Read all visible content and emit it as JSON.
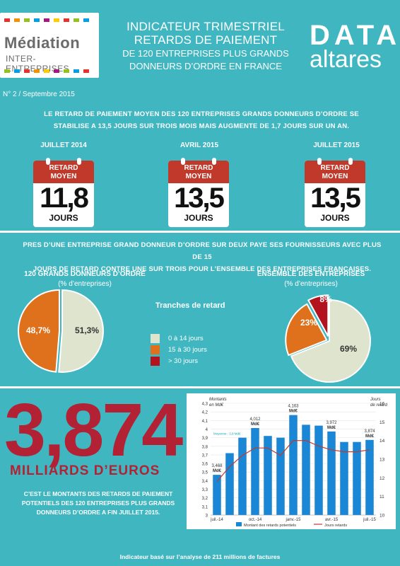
{
  "header": {
    "logo_mediation": {
      "title": "Médiation",
      "subtitle": "INTER-ENTREPRISES"
    },
    "title_line1": "INDICATEUR TRIMESTRIEL",
    "title_line2": "RETARDS DE PAIEMENT",
    "title_line3": "DE 120 ENTREPRISES PLUS GRANDS",
    "title_line4": "DONNEURS D’ORDRE EN FRANCE",
    "logo_data": {
      "line1": "DATA",
      "line2": "altares"
    },
    "issue": "N° 2 / Septembre 2015"
  },
  "section1": {
    "intro_line1": "LE RETARD DE PAIEMENT MOYEN DES 120 ENTREPRISES GRANDS DONNEURS D’ORDRE SE",
    "intro_line2": "STABILISE A 13,5 JOURS SUR TROIS MOIS MAIS AUGMENTE DE 1,7 JOURS SUR UN AN.",
    "calendars": [
      {
        "period": "JUILLET 2014",
        "header": "RETARD MOYEN",
        "value": "11,8",
        "unit": "JOURS"
      },
      {
        "period": "AVRIL 2015",
        "header": "RETARD MOYEN",
        "value": "13,5",
        "unit": "JOURS"
      },
      {
        "period": "JUILLET 2015",
        "header": "RETARD MOYEN",
        "value": "13,5",
        "unit": "JOURS"
      }
    ]
  },
  "section2": {
    "intro_line1": "PRES D’UNE ENTREPRISE GRAND DONNEUR D’ORDRE SUR DEUX PAYE SES FOURNISSEURS AVEC PLUS DE 15",
    "intro_line2": "JOURS DE RETARD CONTRE UNE SUR TROIS POUR L’ENSEMBLE DES ENTREPRISES FRANCAISES.",
    "pie_left": {
      "title": "120 GRANDS DONNEURS D’ORDRE",
      "subtitle": "(% d’entreprises)",
      "labels": [
        "51,3%",
        "48,7%"
      ]
    },
    "pie_right": {
      "title": "ENSEMBLE DES ENTREPRISES",
      "subtitle": "(% d’entreprises)",
      "labels": [
        "69%",
        "23%",
        "8%"
      ]
    },
    "legend": {
      "title": "Tranches de retard",
      "items": [
        "0 à 14 jours",
        "15 à 30 jours",
        "> 30 jours"
      ]
    },
    "colors": {
      "light": "#dfe4cf",
      "orange": "#e0711c",
      "red": "#b3121f"
    }
  },
  "section3": {
    "big_value": "3,874",
    "big_label": "MILLIARDS D’EUROS",
    "desc_line1": "C’EST LE MONTANTS DES RETARDS DE PAIEMENT",
    "desc_line2": "POTENTIELS DES 120 ENTREPRISES PLUS GRANDS",
    "desc_line3": "DONNEURS D’ORDRE A FIN JUILLET 2015."
  },
  "chart_data": [
    {
      "type": "pie",
      "title": "120 GRANDS DONNEURS D’ORDRE",
      "subtitle": "(% d’entreprises)",
      "categories": [
        "0 à 14 jours",
        "15 à 30 jours"
      ],
      "values": [
        51.3,
        48.7
      ]
    },
    {
      "type": "pie",
      "title": "ENSEMBLE DES ENTREPRISES",
      "subtitle": "(% d’entreprises)",
      "categories": [
        "0 à 14 jours",
        "15 à 30 jours",
        "> 30 jours"
      ],
      "values": [
        69,
        23,
        8
      ]
    },
    {
      "type": "bar",
      "ylabel_left": "Montants en Md€",
      "ylabel_right": "Jours de retard",
      "x_ticks": [
        "juil.-14",
        "oct.-14",
        "janv.-15",
        "avr.-15",
        "juil.-15"
      ],
      "ylim": [
        3.0,
        4.3
      ],
      "yticks": [
        "3",
        "3,1",
        "3,2",
        "3,3",
        "3,4",
        "3,5",
        "3,6",
        "3,7",
        "3,8",
        "3,9",
        "4",
        "4,1",
        "4,2",
        "4,3"
      ],
      "y2lim": [
        10,
        16
      ],
      "y2ticks": [
        "10",
        "11",
        "12",
        "13",
        "14",
        "15",
        "16"
      ],
      "series": [
        {
          "name": "Montant des retards potentiels",
          "values": [
            3.468,
            3.72,
            3.9,
            4.012,
            3.92,
            3.9,
            4.163,
            4.05,
            4.04,
            3.972,
            3.85,
            3.85,
            3.874
          ]
        },
        {
          "name": "Jours retards",
          "values": [
            11.8,
            12.6,
            13.2,
            13.6,
            13.6,
            13.2,
            14.0,
            14.0,
            13.7,
            13.5,
            13.4,
            13.4,
            13.5
          ]
        }
      ],
      "bar_labels": [
        {
          "index": 0,
          "text": "3,468",
          "unit": "Md€"
        },
        {
          "index": 3,
          "text": "4,012",
          "unit": "Md€"
        },
        {
          "index": 6,
          "text": "4,163",
          "unit": "Md€"
        },
        {
          "index": 9,
          "text": "3,972",
          "unit": "Md€"
        },
        {
          "index": 12,
          "text": "3,874",
          "unit": "Md€"
        }
      ],
      "annotation": "Moyenne : 3,9 Md€",
      "legend": "bottom",
      "colors": {
        "bars": "#1a86d6",
        "line": "#c0392b",
        "annotation": "#1aa6b5"
      }
    }
  ],
  "footer": "Indicateur basé sur l’analyse de 211 millions de factures"
}
